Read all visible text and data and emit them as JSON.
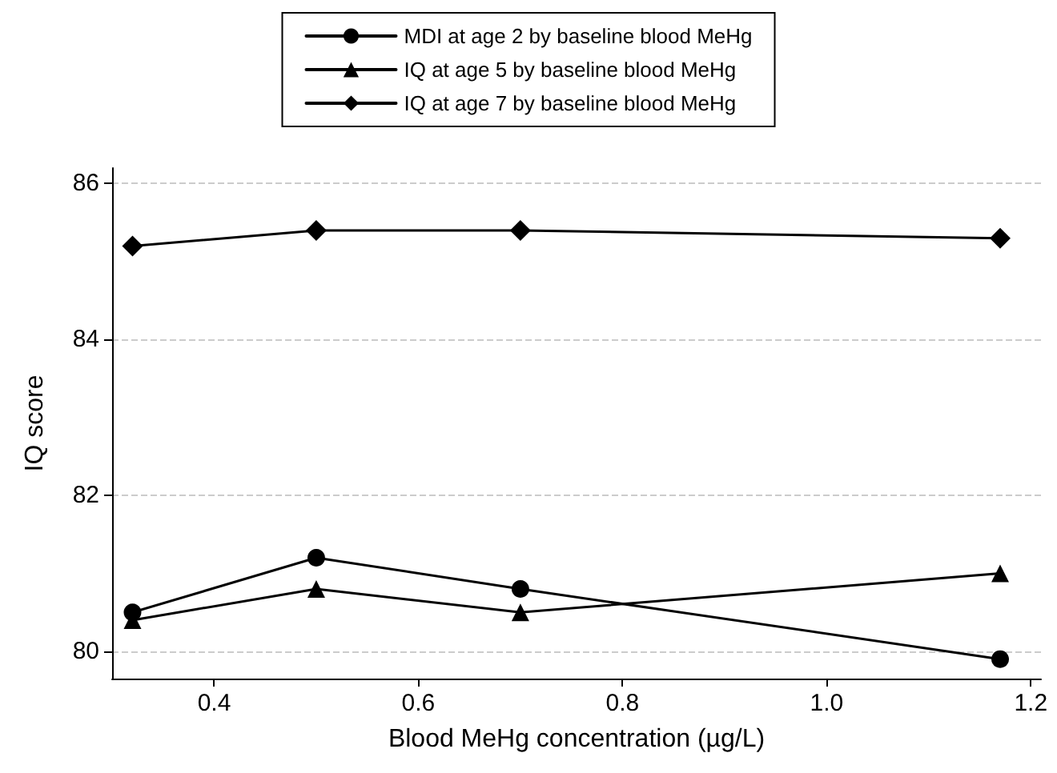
{
  "chart_data": {
    "type": "line",
    "xlabel": "Blood MeHg concentration (µg/L)",
    "ylabel": "IQ score",
    "x": [
      0.32,
      0.5,
      0.7,
      1.17
    ],
    "series": [
      {
        "name": "MDI at age 2 by baseline blood MeHg",
        "color": "#000000",
        "marker": "circle",
        "values": [
          80.5,
          81.2,
          80.8,
          79.9
        ]
      },
      {
        "name": "IQ at age 5 by baseline blood MeHg",
        "color": "#000000",
        "marker": "triangle",
        "values": [
          80.4,
          80.8,
          80.5,
          81.0
        ]
      },
      {
        "name": "IQ at age 7 by baseline blood MeHg",
        "color": "#000000",
        "marker": "diamond",
        "values": [
          85.2,
          85.4,
          85.4,
          85.3
        ]
      }
    ],
    "xlim": [
      0.3,
      1.21
    ],
    "xticks": [
      {
        "value": 0.4,
        "label": "0.4"
      },
      {
        "value": 0.6,
        "label": "0.6"
      },
      {
        "value": 0.8,
        "label": "0.8"
      },
      {
        "value": 1.0,
        "label": "1.0"
      },
      {
        "value": 1.2,
        "label": "1.2"
      }
    ],
    "ylim": [
      79.65,
      86.2
    ],
    "yticks": [
      80,
      82,
      84,
      86
    ],
    "grid": "y",
    "legend": "top",
    "line_style": "solid"
  }
}
